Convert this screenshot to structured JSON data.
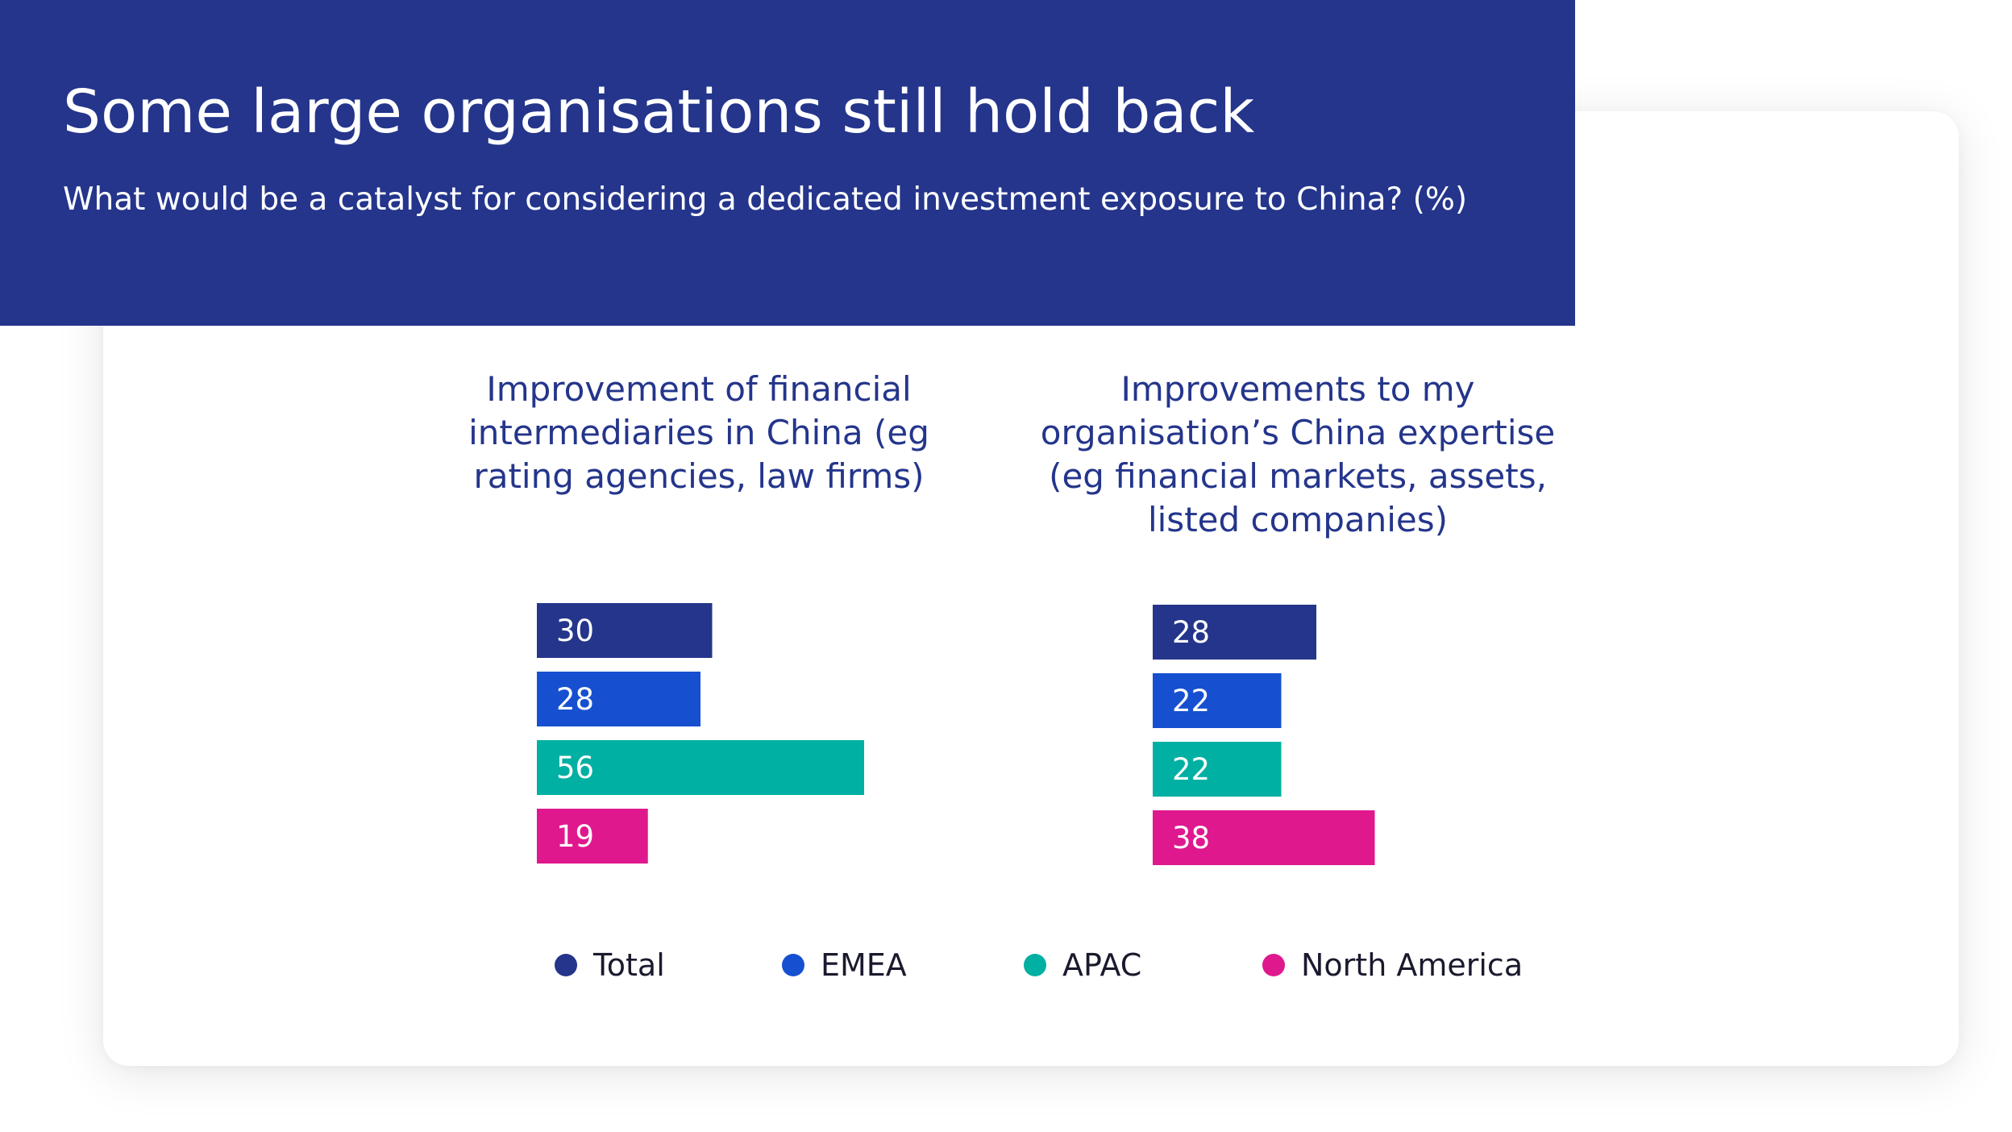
{
  "header": {
    "title": "Some large organisations still hold back",
    "subtitle": "What would be a catalyst for considering a dedicated investment exposure to China? (%)"
  },
  "colors": {
    "header_bg": "#24358b",
    "Total": "#24358b",
    "EMEA": "#1650d0",
    "APAC": "#00b0a3",
    "North America": "#e0188e"
  },
  "legend": [
    "Total",
    "EMEA",
    "APAC",
    "North America"
  ],
  "chart_data": [
    {
      "type": "bar",
      "orientation": "horizontal",
      "title": "Improvement of financial\nintermediaries in China (eg\nrating agencies, law firms)",
      "categories": [
        "Total",
        "EMEA",
        "APAC",
        "North America"
      ],
      "values": [
        30,
        28,
        56,
        19
      ]
    },
    {
      "type": "bar",
      "orientation": "horizontal",
      "title": "Improvements to my\norganisation’s China expertise\n(eg financial markets, assets,\nlisted companies)",
      "categories": [
        "Total",
        "EMEA",
        "APAC",
        "North America"
      ],
      "values": [
        28,
        22,
        22,
        38
      ]
    }
  ]
}
